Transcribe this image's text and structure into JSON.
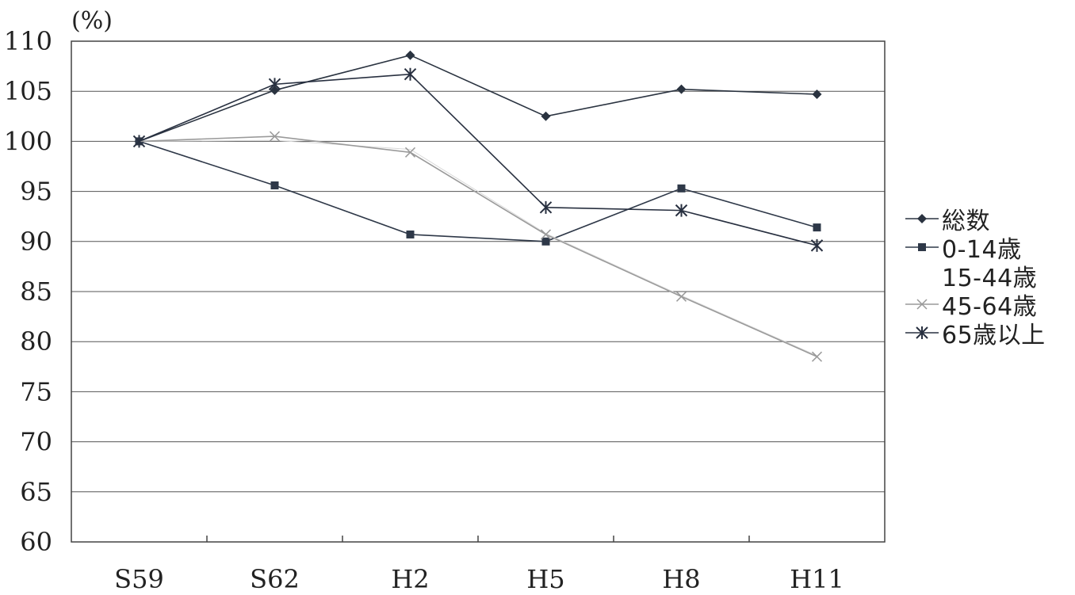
{
  "chart_data": {
    "type": "line",
    "ylabel": "(%)",
    "categories": [
      "S59",
      "S62",
      "H2",
      "H5",
      "H8",
      "H11"
    ],
    "ylim": [
      60,
      110
    ],
    "yticks": [
      110,
      105,
      100,
      95,
      90,
      85,
      80,
      75,
      70,
      65,
      60
    ],
    "grid": true,
    "legend_position": "right",
    "series": [
      {
        "name": "総数",
        "marker": "diamond",
        "color": "#2a3340",
        "values": [
          100,
          105.1,
          108.6,
          102.5,
          105.2,
          104.7
        ]
      },
      {
        "name": "0-14歳",
        "marker": "square",
        "color": "#2e3848",
        "values": [
          100,
          95.6,
          90.7,
          90.0,
          95.3,
          91.4
        ]
      },
      {
        "name": "15-44歳",
        "marker": "none",
        "color": "#d8d8d8",
        "values": [
          100,
          100.1,
          99.2,
          90.8,
          84.6,
          78.6
        ]
      },
      {
        "name": "45-64歳",
        "marker": "x",
        "color": "#9a9a9a",
        "values": [
          100,
          100.5,
          98.9,
          90.7,
          84.5,
          78.5
        ]
      },
      {
        "name": "65歳以上",
        "marker": "asterisk",
        "color": "#283040",
        "values": [
          100,
          105.7,
          106.7,
          93.4,
          93.1,
          89.6
        ]
      }
    ]
  }
}
